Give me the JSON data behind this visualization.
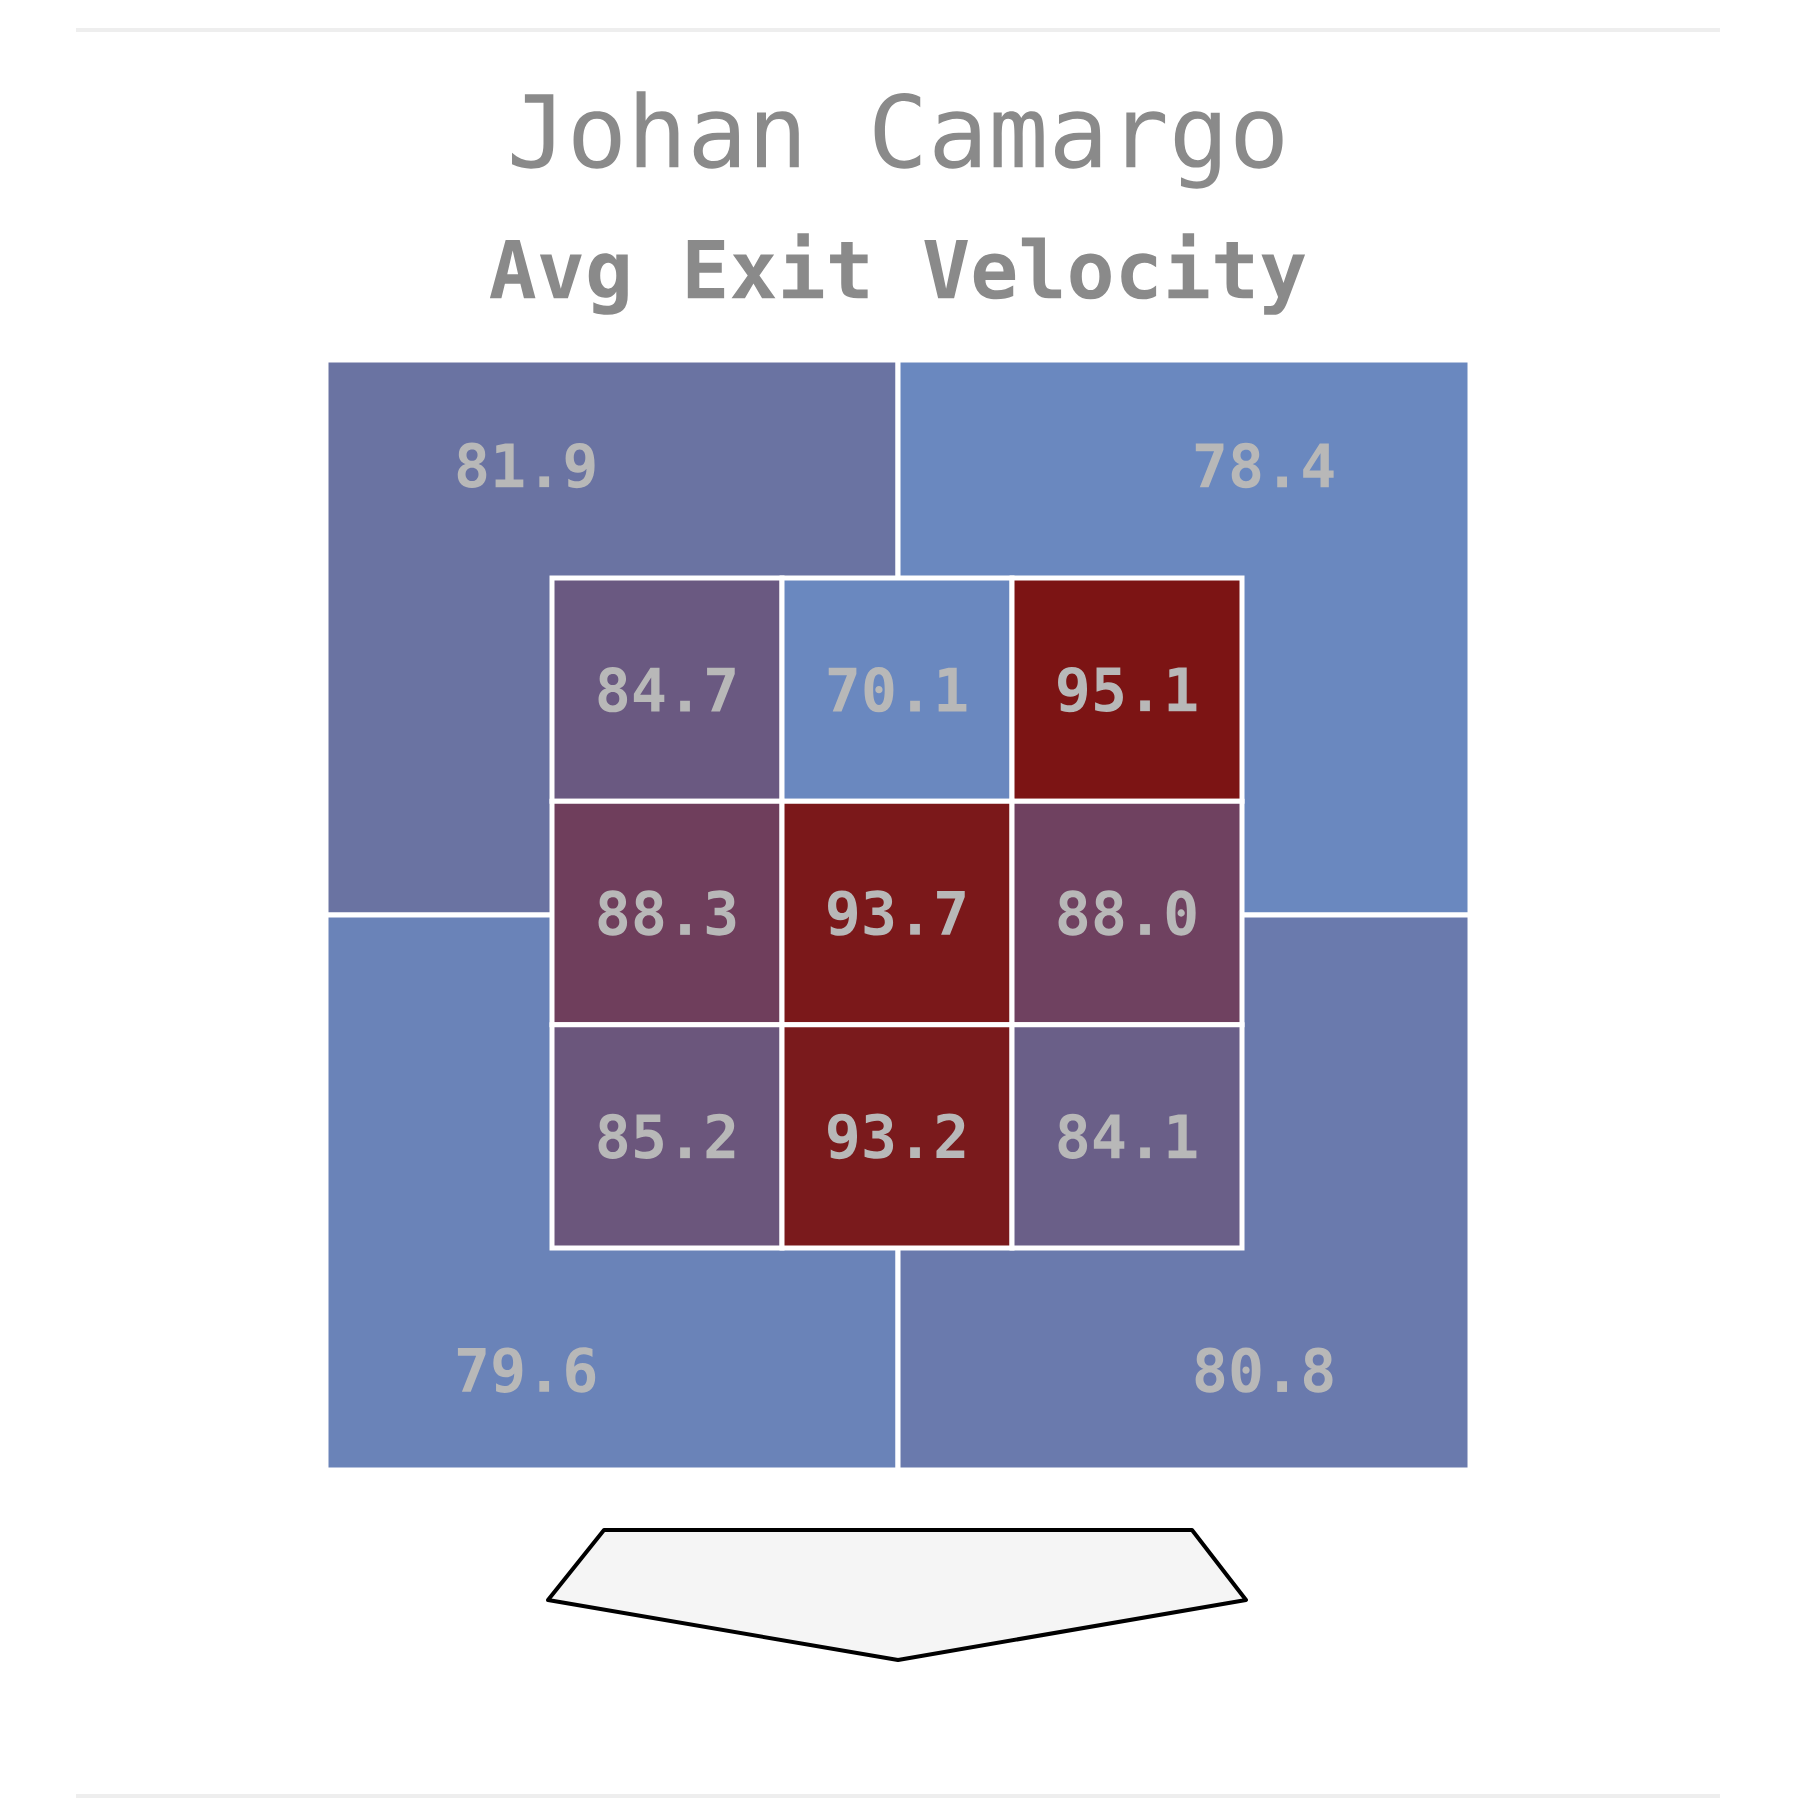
{
  "chart_data": [
    {
      "type": "heatmap",
      "title": "Johan Camargo",
      "subtitle": "Avg Exit Velocity",
      "categories": [
        null,
        null
      ],
      "y_categories": [
        null,
        null
      ],
      "cells": [
        [
          81.9,
          78.4
        ],
        [
          79.6,
          80.8
        ]
      ],
      "cell_labels": [
        [
          "81.9",
          "78.4"
        ],
        [
          "79.6",
          "80.8"
        ]
      ]
    },
    {
      "type": "heatmap",
      "categories": [
        null,
        null,
        null
      ],
      "y_categories": [
        null,
        null,
        null
      ],
      "cells": [
        [
          84.7,
          70.1,
          95.1
        ],
        [
          88.3,
          93.7,
          88.0
        ],
        [
          85.2,
          93.2,
          84.1
        ]
      ],
      "cell_labels": [
        [
          "84.7",
          "70.1",
          "95.1"
        ],
        [
          "88.3",
          "93.7",
          "88.0"
        ],
        [
          "85.2",
          "93.2",
          "84.1"
        ]
      ]
    }
  ]
}
